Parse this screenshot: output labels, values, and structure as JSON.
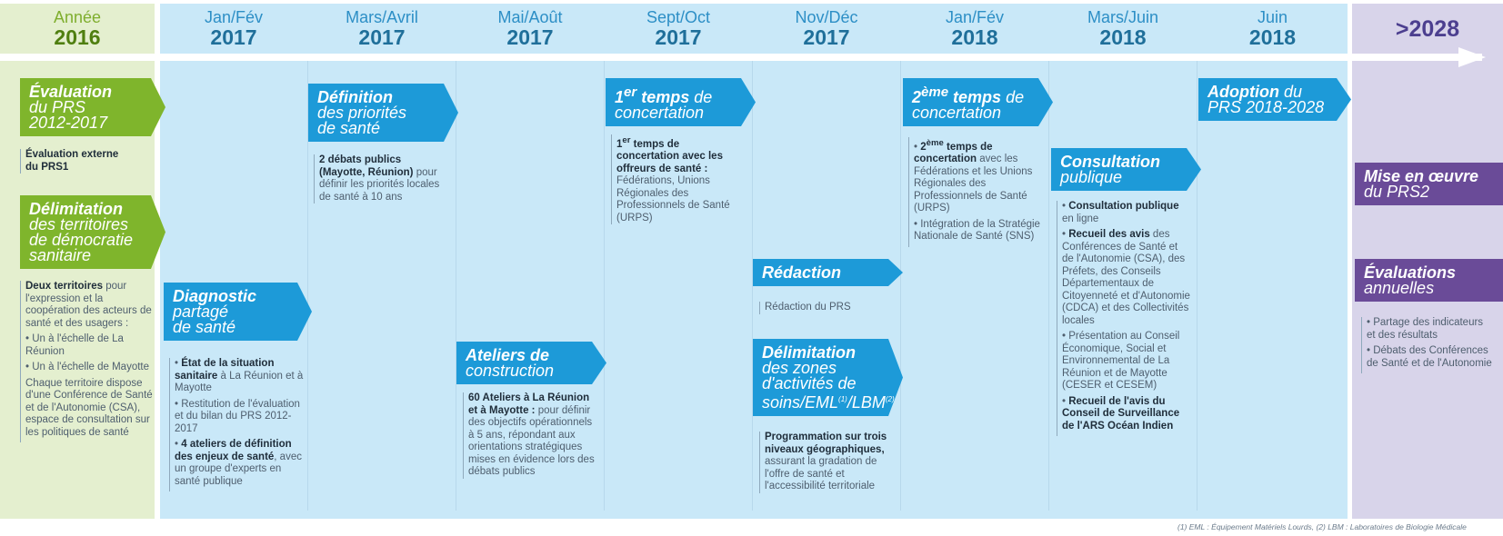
{
  "header": {
    "cols": [
      {
        "period": "Année",
        "year": "2016"
      },
      {
        "period": "Jan/Fév",
        "year": "2017"
      },
      {
        "period": "Mars/Avril",
        "year": "2017"
      },
      {
        "period": "Mai/Août",
        "year": "2017"
      },
      {
        "period": "Sept/Oct",
        "year": "2017"
      },
      {
        "period": "Nov/Déc",
        "year": "2017"
      },
      {
        "period": "Jan/Fév",
        "year": "2018"
      },
      {
        "period": "Mars/Juin",
        "year": "2018"
      },
      {
        "period": "Juin",
        "year": "2018"
      },
      {
        "period": "",
        "year": ">2028"
      }
    ]
  },
  "steps": {
    "evaluation": {
      "title": [
        "Évaluation",
        "du PRS",
        "2012-2017"
      ],
      "text": [
        "Évaluation externe",
        "du PRS1"
      ]
    },
    "delimitation_territoires": {
      "title": [
        "Délimitation",
        "des territoires",
        "de démocratie",
        "sanitaire"
      ],
      "intro_bold": "Deux territoires",
      "intro": " pour l'expression et la coopération des acteurs de santé et des usagers :",
      "items": [
        "Un à l'échelle de La Réunion",
        "Un à l'échelle de Mayotte"
      ],
      "outro": "Chaque territoire dispose d'une Conférence de Santé et de l'Autonomie (CSA), espace de consultation sur les politiques de santé"
    },
    "diagnostic": {
      "title": [
        "Diagnostic",
        "partagé",
        "de santé"
      ],
      "item1_bold": "État de la situation sanitaire",
      "item1": " à La Réunion et à Mayotte",
      "item2": "Restitution de l'évaluation et du bilan du PRS 2012-2017",
      "item3_bold": "4 ateliers de définition des enjeux de santé",
      "item3": ", avec un groupe d'experts en santé publique"
    },
    "definition": {
      "title": [
        "Définition",
        "des priorités",
        "de santé"
      ],
      "bold": "2 débats publics (Mayotte, Réunion)",
      "text": " pour définir les priorités locales de santé à 10 ans"
    },
    "ateliers": {
      "title": [
        "Ateliers de",
        "construction"
      ],
      "bold": "60 Ateliers à La Réunion et à Mayotte :",
      "text": " pour définir des objectifs opérationnels à 5 ans, répondant aux orientations stratégiques mises en évidence lors des débats publics"
    },
    "concertation1": {
      "title_bold": "1",
      "title_sup": "er",
      "title_bold2": " temps",
      "title_rest": " de",
      "title2": "concertation",
      "bold_a": "1",
      "bold_sup": "er",
      "bold_b": " temps de concertation avec les offreurs de santé :",
      "text": " Fédérations, Unions Régionales des Professionnels de Santé (URPS)"
    },
    "redaction": {
      "title": "Rédaction",
      "text": "Rédaction du PRS"
    },
    "delimitation_zones": {
      "title": [
        "Délimitation",
        "des zones",
        "d'activités de",
        "soins/EML",
        "/LBM"
      ],
      "sup1": "(1)",
      "sup2": "(2)",
      "bold": "Programmation sur trois niveaux géographiques,",
      "text": " assurant la gradation de l'offre de santé et l'accessibilité territoriale"
    },
    "concertation2": {
      "title_bold": "2",
      "title_sup": "ème",
      "title_bold2": " temps",
      "title_rest": " de",
      "title2": "concertation",
      "item1_a": "2",
      "item1_sup": "ème",
      "item1_b": " temps de concertation",
      "item1_text": " avec les Fédérations et les Unions Régionales des Professionnels de Santé (URPS)",
      "item2": "Intégration de la Stratégie Nationale de Santé (SNS)"
    },
    "consultation": {
      "title": [
        "Consultation",
        "publique"
      ],
      "item1_bold": "Consultation publique",
      "item1": " en ligne",
      "item2_bold": "Recueil des avis",
      "item2": " des Conférences de Santé et de l'Autonomie (CSA), des Préfets, des Conseils Départementaux de Citoyenneté et d'Autonomie (CDCA) et des Collectivités locales",
      "item3": "Présentation au Conseil Économique, Social et Environnemental de La Réunion et de Mayotte (CESER et CESEM)",
      "item4_bold": "Recueil de l'avis du Conseil de Surveillance de l'ARS Océan Indien"
    },
    "adoption": {
      "title_bold": "Adoption",
      "title_rest": " du",
      "title2": "PRS 2018-2028"
    },
    "mise_en_oeuvre": {
      "title_bold": "Mise en œuvre",
      "title2": "du PRS2"
    },
    "evaluations": {
      "title": [
        "Évaluations",
        "annuelles"
      ],
      "items": [
        "Partage des indicateurs et des résultats",
        "Débats des Conférences de Santé et de l'Autonomie"
      ]
    }
  },
  "footnote": "(1) EML : Équipement Matériels Lourds, (2) LBM : Laboratoires de Biologie Médicale",
  "colors": {
    "blue": "#1d9ad8",
    "green": "#7fb52c",
    "purple": "#6a4b98",
    "light_blue": "#c9e8f8"
  }
}
